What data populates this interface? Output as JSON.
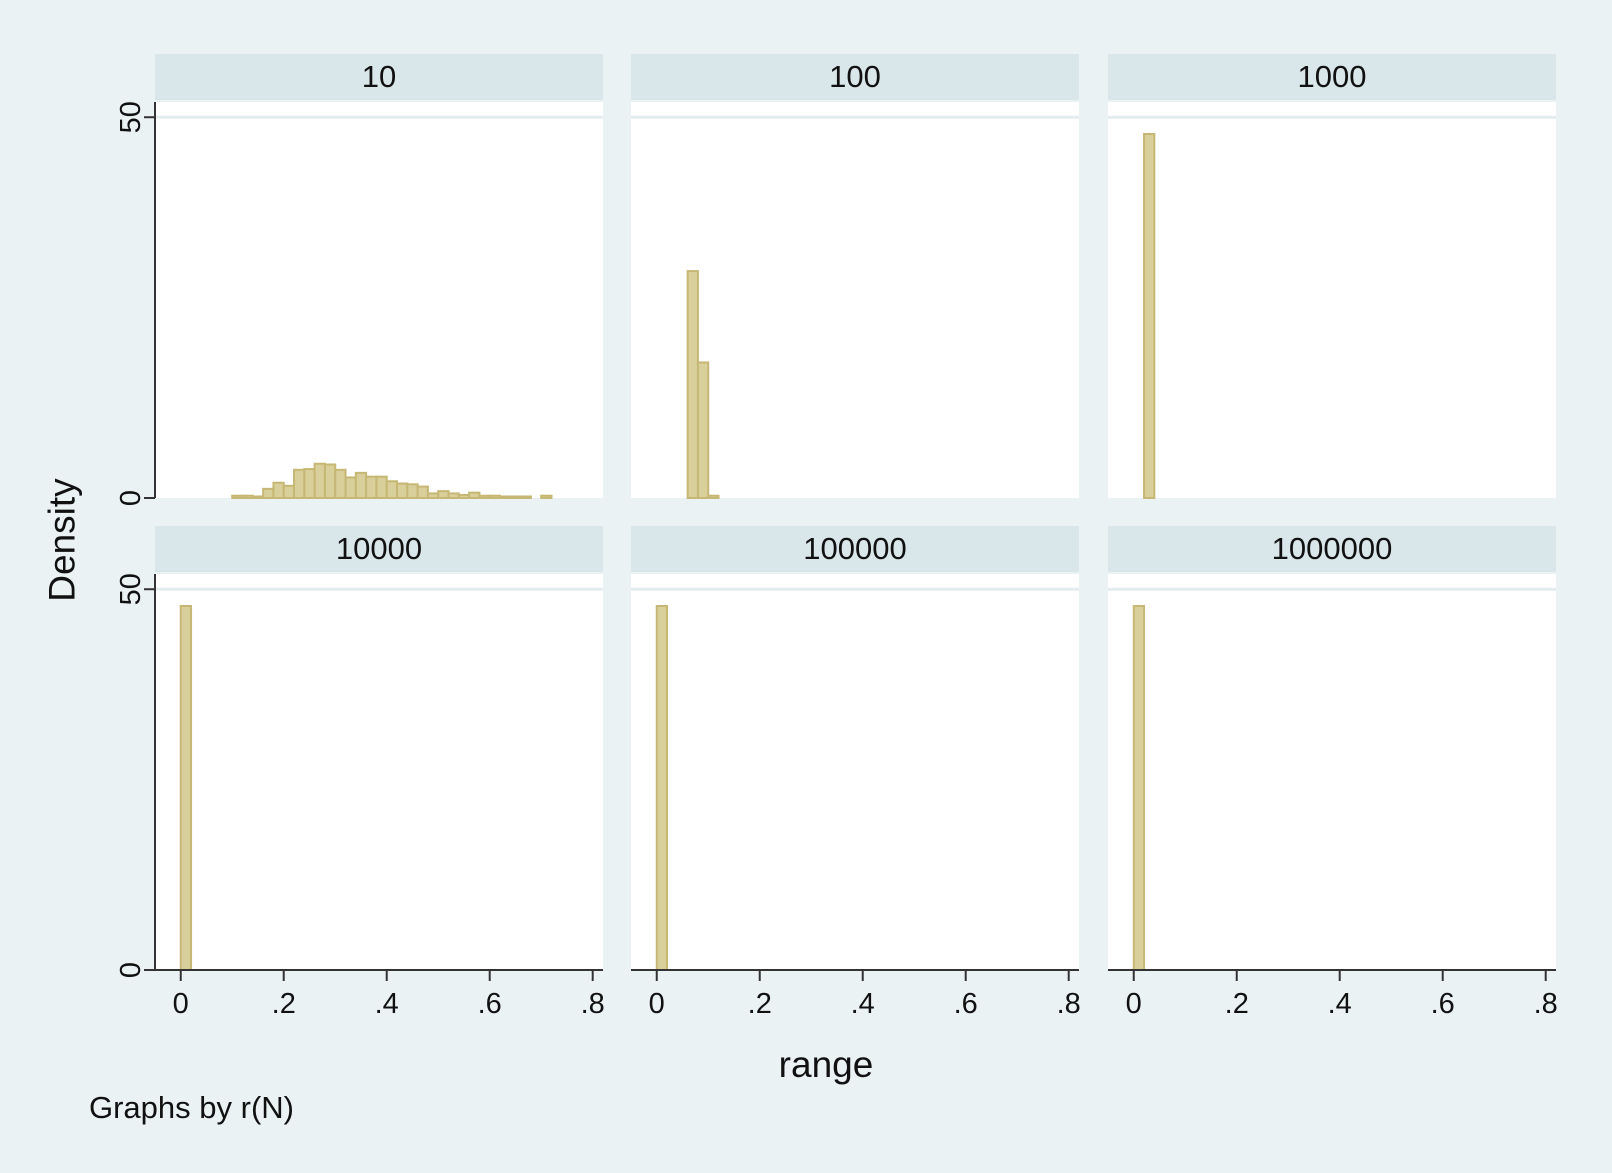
{
  "chart_data": {
    "type": "bar",
    "ylabel": "Density",
    "xlabel": "range",
    "note": "Graphs by r(N)",
    "xlim": [
      -0.05,
      0.82
    ],
    "ylim": [
      0,
      52
    ],
    "xticks": [
      0,
      0.2,
      0.4,
      0.6,
      0.8
    ],
    "xtick_labels": [
      "0",
      ".2",
      ".4",
      ".6",
      ".8"
    ],
    "yticks": [
      0,
      50
    ],
    "ytick_labels": [
      "0",
      "50"
    ],
    "bar_width": 0.02,
    "grid": true,
    "colors": {
      "bar": "#d9cf9a",
      "bar_edge": "#c6b874",
      "panel": "#ffffff",
      "header": "#d9e6ea",
      "background": "#eaf2f3"
    },
    "panels": [
      {
        "title": "10",
        "bins": [
          {
            "x": 0.11,
            "y": 0.3
          },
          {
            "x": 0.13,
            "y": 0.3
          },
          {
            "x": 0.15,
            "y": 0.2
          },
          {
            "x": 0.17,
            "y": 1.2
          },
          {
            "x": 0.19,
            "y": 2.0
          },
          {
            "x": 0.21,
            "y": 1.6
          },
          {
            "x": 0.23,
            "y": 3.7
          },
          {
            "x": 0.25,
            "y": 3.8
          },
          {
            "x": 0.27,
            "y": 4.5
          },
          {
            "x": 0.29,
            "y": 4.4
          },
          {
            "x": 0.31,
            "y": 3.7
          },
          {
            "x": 0.33,
            "y": 2.7
          },
          {
            "x": 0.35,
            "y": 3.3
          },
          {
            "x": 0.37,
            "y": 2.8
          },
          {
            "x": 0.39,
            "y": 2.8
          },
          {
            "x": 0.41,
            "y": 2.2
          },
          {
            "x": 0.43,
            "y": 1.9
          },
          {
            "x": 0.45,
            "y": 1.8
          },
          {
            "x": 0.47,
            "y": 1.5
          },
          {
            "x": 0.49,
            "y": 0.6
          },
          {
            "x": 0.51,
            "y": 0.9
          },
          {
            "x": 0.53,
            "y": 0.6
          },
          {
            "x": 0.55,
            "y": 0.4
          },
          {
            "x": 0.57,
            "y": 0.7
          },
          {
            "x": 0.59,
            "y": 0.3
          },
          {
            "x": 0.61,
            "y": 0.3
          },
          {
            "x": 0.63,
            "y": 0.2
          },
          {
            "x": 0.65,
            "y": 0.2
          },
          {
            "x": 0.67,
            "y": 0.2
          },
          {
            "x": 0.71,
            "y": 0.3
          }
        ]
      },
      {
        "title": "100",
        "bins": [
          {
            "x": 0.07,
            "y": 29.8
          },
          {
            "x": 0.09,
            "y": 17.8
          },
          {
            "x": 0.11,
            "y": 0.3
          }
        ]
      },
      {
        "title": "1000",
        "bins": [
          {
            "x": 0.03,
            "y": 47.8
          }
        ]
      },
      {
        "title": "10000",
        "bins": [
          {
            "x": 0.01,
            "y": 47.8
          }
        ]
      },
      {
        "title": "100000",
        "bins": [
          {
            "x": 0.01,
            "y": 47.8
          }
        ]
      },
      {
        "title": "1000000",
        "bins": [
          {
            "x": 0.01,
            "y": 47.8
          }
        ]
      }
    ]
  }
}
